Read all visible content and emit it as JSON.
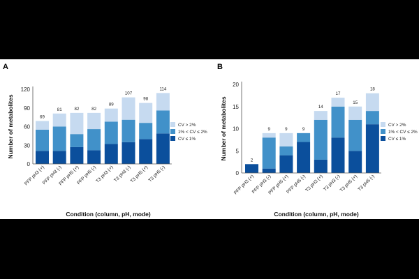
{
  "chart_data": [
    {
      "type": "bar",
      "stacked": true,
      "panel_label": "A",
      "categories": [
        "PFP pH3 (+)",
        "PFP pH3 (-)",
        "PFP pH5 (+)",
        "PFP pH5 (-)",
        "T3 pH3 (+)",
        "T3 pH3 (-)",
        "T3 pH5 (+)",
        "T3 pH5 (-)"
      ],
      "series": [
        {
          "name": "CV ≤ 1%",
          "color": "#0b4f9c",
          "values": [
            21,
            21,
            27,
            22,
            32,
            35,
            40,
            49
          ]
        },
        {
          "name": "1% < CV ≤ 2%",
          "color": "#4191c9",
          "values": [
            34,
            39,
            21,
            34,
            36,
            36,
            26,
            37
          ]
        },
        {
          "name": "CV > 2%",
          "color": "#c6daf0",
          "values": [
            14,
            21,
            34,
            26,
            21,
            36,
            32,
            28
          ]
        }
      ],
      "totals": [
        "69",
        "81",
        "82",
        "82",
        "89",
        "107",
        "98",
        "114"
      ],
      "ylabel": "Number of metabolites",
      "xlabel": "Condition (column, pH, mode)",
      "ylim": [
        0,
        120
      ],
      "yticks": [
        "0",
        "30",
        "60",
        "90",
        "120"
      ],
      "ytick_values": [
        0,
        30,
        60,
        90,
        120
      ],
      "legend_position": "right"
    },
    {
      "type": "bar",
      "stacked": true,
      "panel_label": "B",
      "categories": [
        "PFP pH3 (+)",
        "PFP pH3 (-)",
        "PFP pH5 (+)",
        "PFP pH5 (-)",
        "T3 pH3 (+)",
        "T3 pH3 (-)",
        "T3 pH5 (+)",
        "T3 pH5 (-)"
      ],
      "series": [
        {
          "name": "CV ≤ 1%",
          "color": "#0b4f9c",
          "values": [
            2,
            1,
            4,
            7,
            3,
            8,
            5,
            11
          ]
        },
        {
          "name": "1% < CV ≤ 2%",
          "color": "#4191c9",
          "values": [
            0,
            7,
            2,
            2,
            9,
            7,
            7,
            3
          ]
        },
        {
          "name": "CV > 2%",
          "color": "#c6daf0",
          "values": [
            0,
            1,
            3,
            0,
            2,
            2,
            3,
            4
          ]
        }
      ],
      "totals": [
        "2",
        "9",
        "9",
        "9",
        "14",
        "17",
        "15",
        "18"
      ],
      "ylabel": "Number of metabolites",
      "xlabel": "Condition (column, pH, mode)",
      "ylim": [
        0,
        20
      ],
      "yticks": [
        "0",
        "5",
        "10",
        "15",
        "20"
      ],
      "ytick_values": [
        0,
        5,
        10,
        15,
        20
      ],
      "legend_position": "right"
    }
  ]
}
